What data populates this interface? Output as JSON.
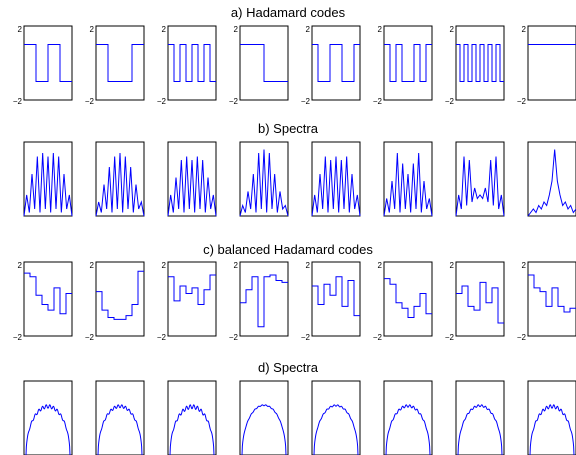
{
  "colors": {
    "line": "#0000ff",
    "frame": "#000000",
    "background": "#ffffff"
  },
  "chart_data": [
    {
      "type": "line",
      "title": "a) Hadamard codes",
      "panels": 8,
      "ylim": [
        -2,
        2
      ],
      "ytick_labels": [
        "2",
        "−2"
      ],
      "series": [
        {
          "y": [
            1,
            1,
            -1,
            -1,
            1,
            1,
            -1,
            -1
          ]
        },
        {
          "y": [
            1,
            1,
            -1,
            -1,
            -1,
            -1,
            1,
            1
          ]
        },
        {
          "y": [
            1,
            -1,
            1,
            -1,
            1,
            -1,
            1,
            -1
          ]
        },
        {
          "y": [
            1,
            1,
            1,
            1,
            -1,
            -1,
            -1,
            -1
          ]
        },
        {
          "y": [
            1,
            -1,
            -1,
            1,
            1,
            -1,
            -1,
            1
          ]
        },
        {
          "y": [
            1,
            -1,
            1,
            -1,
            -1,
            1,
            -1,
            1
          ]
        },
        {
          "y": [
            1,
            -1,
            1,
            -1,
            1,
            -1,
            1,
            -1,
            1,
            -1,
            1,
            -1
          ]
        },
        {
          "y": [
            1,
            1,
            1,
            1,
            1,
            1,
            1,
            1
          ]
        }
      ]
    },
    {
      "type": "line",
      "title": "b) Spectra",
      "panels": 8,
      "series": [
        {
          "y": [
            0,
            0.3,
            0.05,
            0.6,
            0.1,
            0.85,
            0.05,
            0.9,
            0.1,
            0.85,
            0.05,
            0.9,
            0.1,
            0.85,
            0.05,
            0.6,
            0.1,
            0.3,
            0
          ]
        },
        {
          "y": [
            0,
            0.2,
            0.05,
            0.45,
            0.1,
            0.7,
            0.05,
            0.85,
            0.1,
            0.9,
            0.05,
            0.85,
            0.1,
            0.7,
            0.05,
            0.45,
            0.1,
            0.2,
            0
          ]
        },
        {
          "y": [
            0,
            0.3,
            0.05,
            0.55,
            0.1,
            0.8,
            0.05,
            0.85,
            0.1,
            0.8,
            0.05,
            0.85,
            0.1,
            0.8,
            0.05,
            0.55,
            0.1,
            0.3,
            0
          ]
        },
        {
          "y": [
            0,
            0.15,
            0.05,
            0.35,
            0.1,
            0.6,
            0.05,
            0.9,
            0.1,
            0.95,
            0.05,
            0.9,
            0.1,
            0.6,
            0.05,
            0.35,
            0.1,
            0.15,
            0
          ]
        },
        {
          "y": [
            0,
            0.3,
            0.05,
            0.6,
            0.1,
            0.85,
            0.05,
            0.8,
            0.1,
            0.85,
            0.05,
            0.8,
            0.1,
            0.85,
            0.05,
            0.6,
            0.1,
            0.3,
            0
          ]
        },
        {
          "y": [
            0,
            0.25,
            0.05,
            0.5,
            0.1,
            0.9,
            0.05,
            0.75,
            0.1,
            0.6,
            0.05,
            0.75,
            0.1,
            0.9,
            0.05,
            0.5,
            0.1,
            0.25,
            0
          ]
        },
        {
          "y": [
            0,
            0.3,
            0.1,
            0.85,
            0.15,
            0.8,
            0.2,
            0.4,
            0.25,
            0.3,
            0.25,
            0.4,
            0.2,
            0.8,
            0.15,
            0.85,
            0.1,
            0.3,
            0
          ]
        },
        {
          "y": [
            0,
            0.05,
            0.1,
            0.05,
            0.15,
            0.1,
            0.2,
            0.15,
            0.3,
            0.5,
            0.95,
            0.5,
            0.3,
            0.15,
            0.2,
            0.1,
            0.15,
            0.05,
            0.1
          ]
        }
      ]
    },
    {
      "type": "line",
      "title": "c) balanced Hadamard codes",
      "panels": 8,
      "ylim": [
        -2,
        2
      ],
      "ytick_labels": [
        "2",
        "−2"
      ],
      "series": [
        {
          "y": [
            1.4,
            1.2,
            0.2,
            -0.3,
            -0.6,
            0.6,
            -0.8,
            0.3
          ]
        },
        {
          "y": [
            0.4,
            -0.6,
            -1.0,
            -1.1,
            -1.1,
            -0.9,
            -0.3,
            1.5
          ]
        },
        {
          "y": [
            1.2,
            -0.1,
            0.7,
            0.3,
            0.6,
            -0.3,
            0.5,
            1.3
          ]
        },
        {
          "y": [
            -0.2,
            0.5,
            1.2,
            -1.5,
            1.2,
            1.3,
            1.0,
            0.9
          ]
        },
        {
          "y": [
            0.7,
            -0.3,
            0.8,
            0.2,
            1.2,
            -0.4,
            1.0,
            -0.9
          ]
        },
        {
          "y": [
            1.1,
            0.8,
            -0.2,
            -0.5,
            -1.0,
            -0.4,
            0.3,
            -0.8
          ]
        },
        {
          "y": [
            0.3,
            0.7,
            -0.4,
            -0.6,
            0.9,
            -0.2,
            0.6,
            -1.3
          ]
        },
        {
          "y": [
            1.3,
            0.6,
            0.4,
            -0.4,
            0.6,
            -0.4,
            -0.7,
            -0.5
          ]
        }
      ]
    },
    {
      "type": "line",
      "title": "d) Spectra",
      "panels": 8,
      "series": [
        {
          "ripple": 0.07
        },
        {
          "ripple": 0.06
        },
        {
          "ripple": 0.08
        },
        {
          "ripple": 0.02
        },
        {
          "ripple": 0.03
        },
        {
          "ripple": 0.05
        },
        {
          "ripple": 0.04
        },
        {
          "ripple": 0.07
        }
      ]
    }
  ]
}
